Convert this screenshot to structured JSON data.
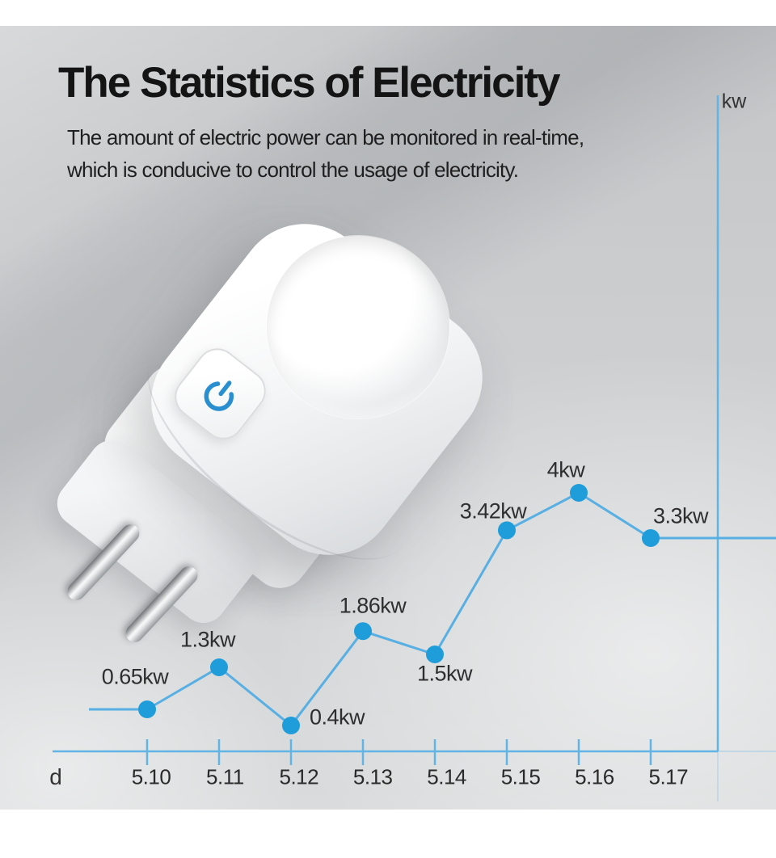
{
  "page": {
    "title": "The Statistics of Electricity",
    "subtitle_line1": "The amount of electric power can be monitored in real-time,",
    "subtitle_line2": "which is conducive to control the usage of electricity."
  },
  "device": {
    "power_icon": "power-icon",
    "power_icon_color": "#2a8fd0"
  },
  "chart_data": {
    "type": "line",
    "title": "",
    "xlabel": "d",
    "ylabel": "kw",
    "categories": [
      "5.10",
      "5.11",
      "5.12",
      "5.13",
      "5.14",
      "5.15",
      "5.16",
      "5.17"
    ],
    "values": [
      0.65,
      1.3,
      0.4,
      1.86,
      1.5,
      3.42,
      4,
      3.3
    ],
    "point_labels": [
      "0.65kw",
      "1.3kw",
      "0.4kw",
      "1.86kw",
      "1.5kw",
      "3.42kw",
      "4kw",
      "3.3kw"
    ],
    "ylim": [
      0,
      4.5
    ],
    "grid": false,
    "legend": "none",
    "colors": {
      "line": "#58afe3",
      "dot": "#1f9dda",
      "axis": "#62b4e4",
      "label": "#2e2e2e"
    }
  }
}
